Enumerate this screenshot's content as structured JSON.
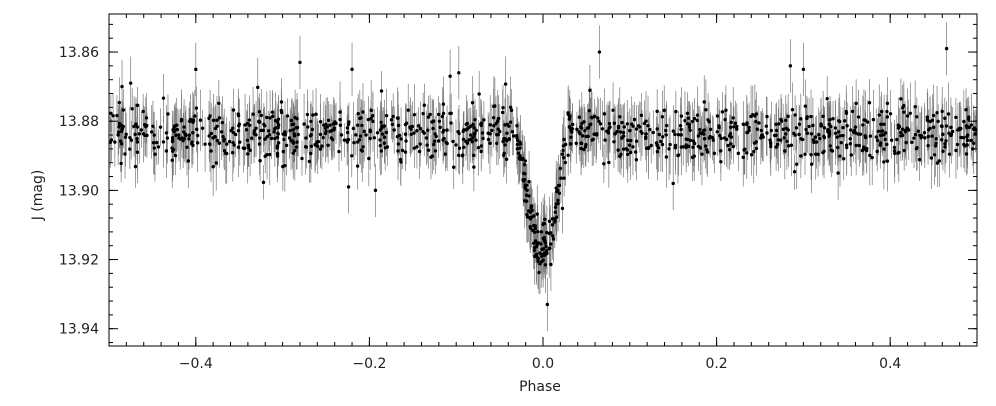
{
  "chart_data": {
    "type": "scatter",
    "title": "",
    "xlabel": "Phase",
    "ylabel": "J (mag)",
    "xlim": [
      -0.5,
      0.5
    ],
    "ylim": [
      13.945,
      13.849
    ],
    "y_inverted": true,
    "x_ticks": [
      -0.4,
      -0.2,
      0.0,
      0.2,
      0.4
    ],
    "x_tick_labels": [
      "−0.4",
      "−0.2",
      "0.0",
      "0.2",
      "0.4"
    ],
    "y_ticks": [
      13.86,
      13.88,
      13.9,
      13.92,
      13.94
    ],
    "y_tick_labels": [
      "13.86",
      "13.88",
      "13.90",
      "13.92",
      "13.94"
    ],
    "x_minor_step": 0.02,
    "y_minor_step": 0.004,
    "grid": false,
    "legend": "none",
    "marker_color": "#000000",
    "errorbar_color": "#777777",
    "typical_error": 0.007,
    "baseline_mag": 13.8835,
    "eclipse": {
      "center": 0.0,
      "depth": 0.034,
      "half_width": 0.028,
      "flat_half_width": 0.006
    },
    "approx_points": 1100,
    "outliers": [
      {
        "x": -0.4,
        "y": 13.865
      },
      {
        "x": -0.28,
        "y": 13.863
      },
      {
        "x": -0.22,
        "y": 13.865
      },
      {
        "x": -0.107,
        "y": 13.867
      },
      {
        "x": -0.097,
        "y": 13.866
      },
      {
        "x": 0.065,
        "y": 13.86
      },
      {
        "x": 0.285,
        "y": 13.864
      },
      {
        "x": 0.3,
        "y": 13.865
      },
      {
        "x": 0.465,
        "y": 13.859
      },
      {
        "x": -0.224,
        "y": 13.899
      },
      {
        "x": -0.193,
        "y": 13.9
      },
      {
        "x": 0.15,
        "y": 13.898
      },
      {
        "x": 0.34,
        "y": 13.895
      },
      {
        "x": 0.005,
        "y": 13.933
      },
      {
        "x": -0.485,
        "y": 13.87
      },
      {
        "x": -0.475,
        "y": 13.869
      }
    ]
  }
}
